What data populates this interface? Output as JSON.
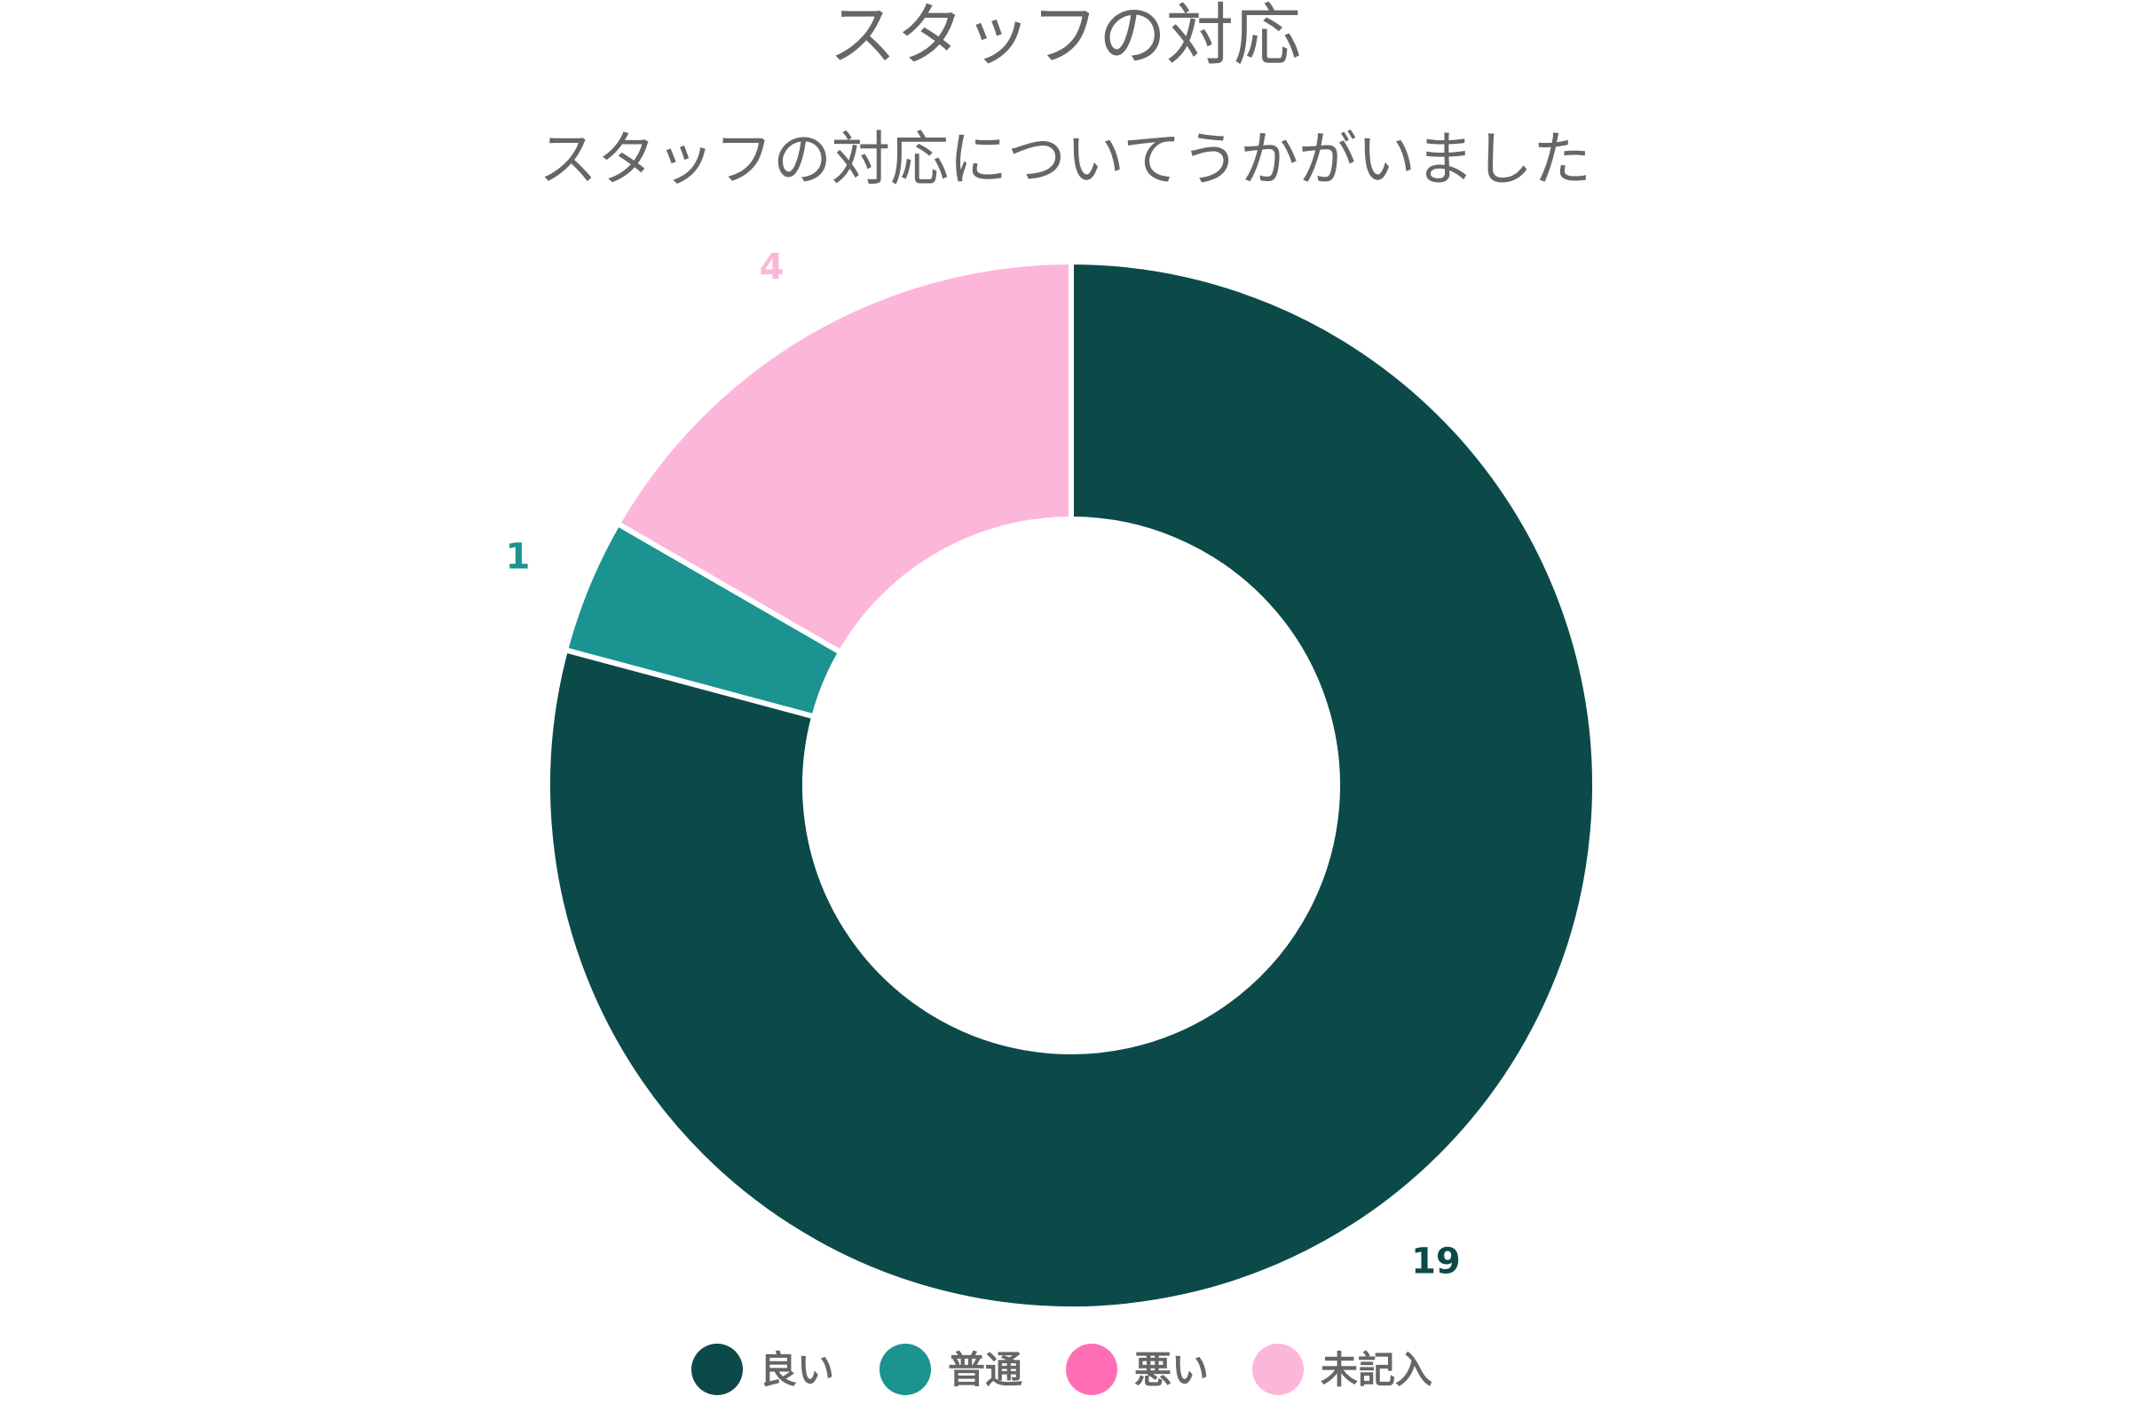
{
  "chart_data": {
    "type": "pie",
    "variant": "donut",
    "title": "スタッフの対応",
    "subtitle": "スタッフの対応についてうかがいました",
    "categories": [
      "良い",
      "普通",
      "悪い",
      "未記入"
    ],
    "values": [
      19,
      1,
      0,
      4
    ],
    "colors": [
      "#0c4a4a",
      "#1b9390",
      "#ff6eb4",
      "#fcb6d9"
    ],
    "data_labels": [
      "19",
      "1",
      "",
      "4"
    ],
    "legend_position": "bottom"
  }
}
